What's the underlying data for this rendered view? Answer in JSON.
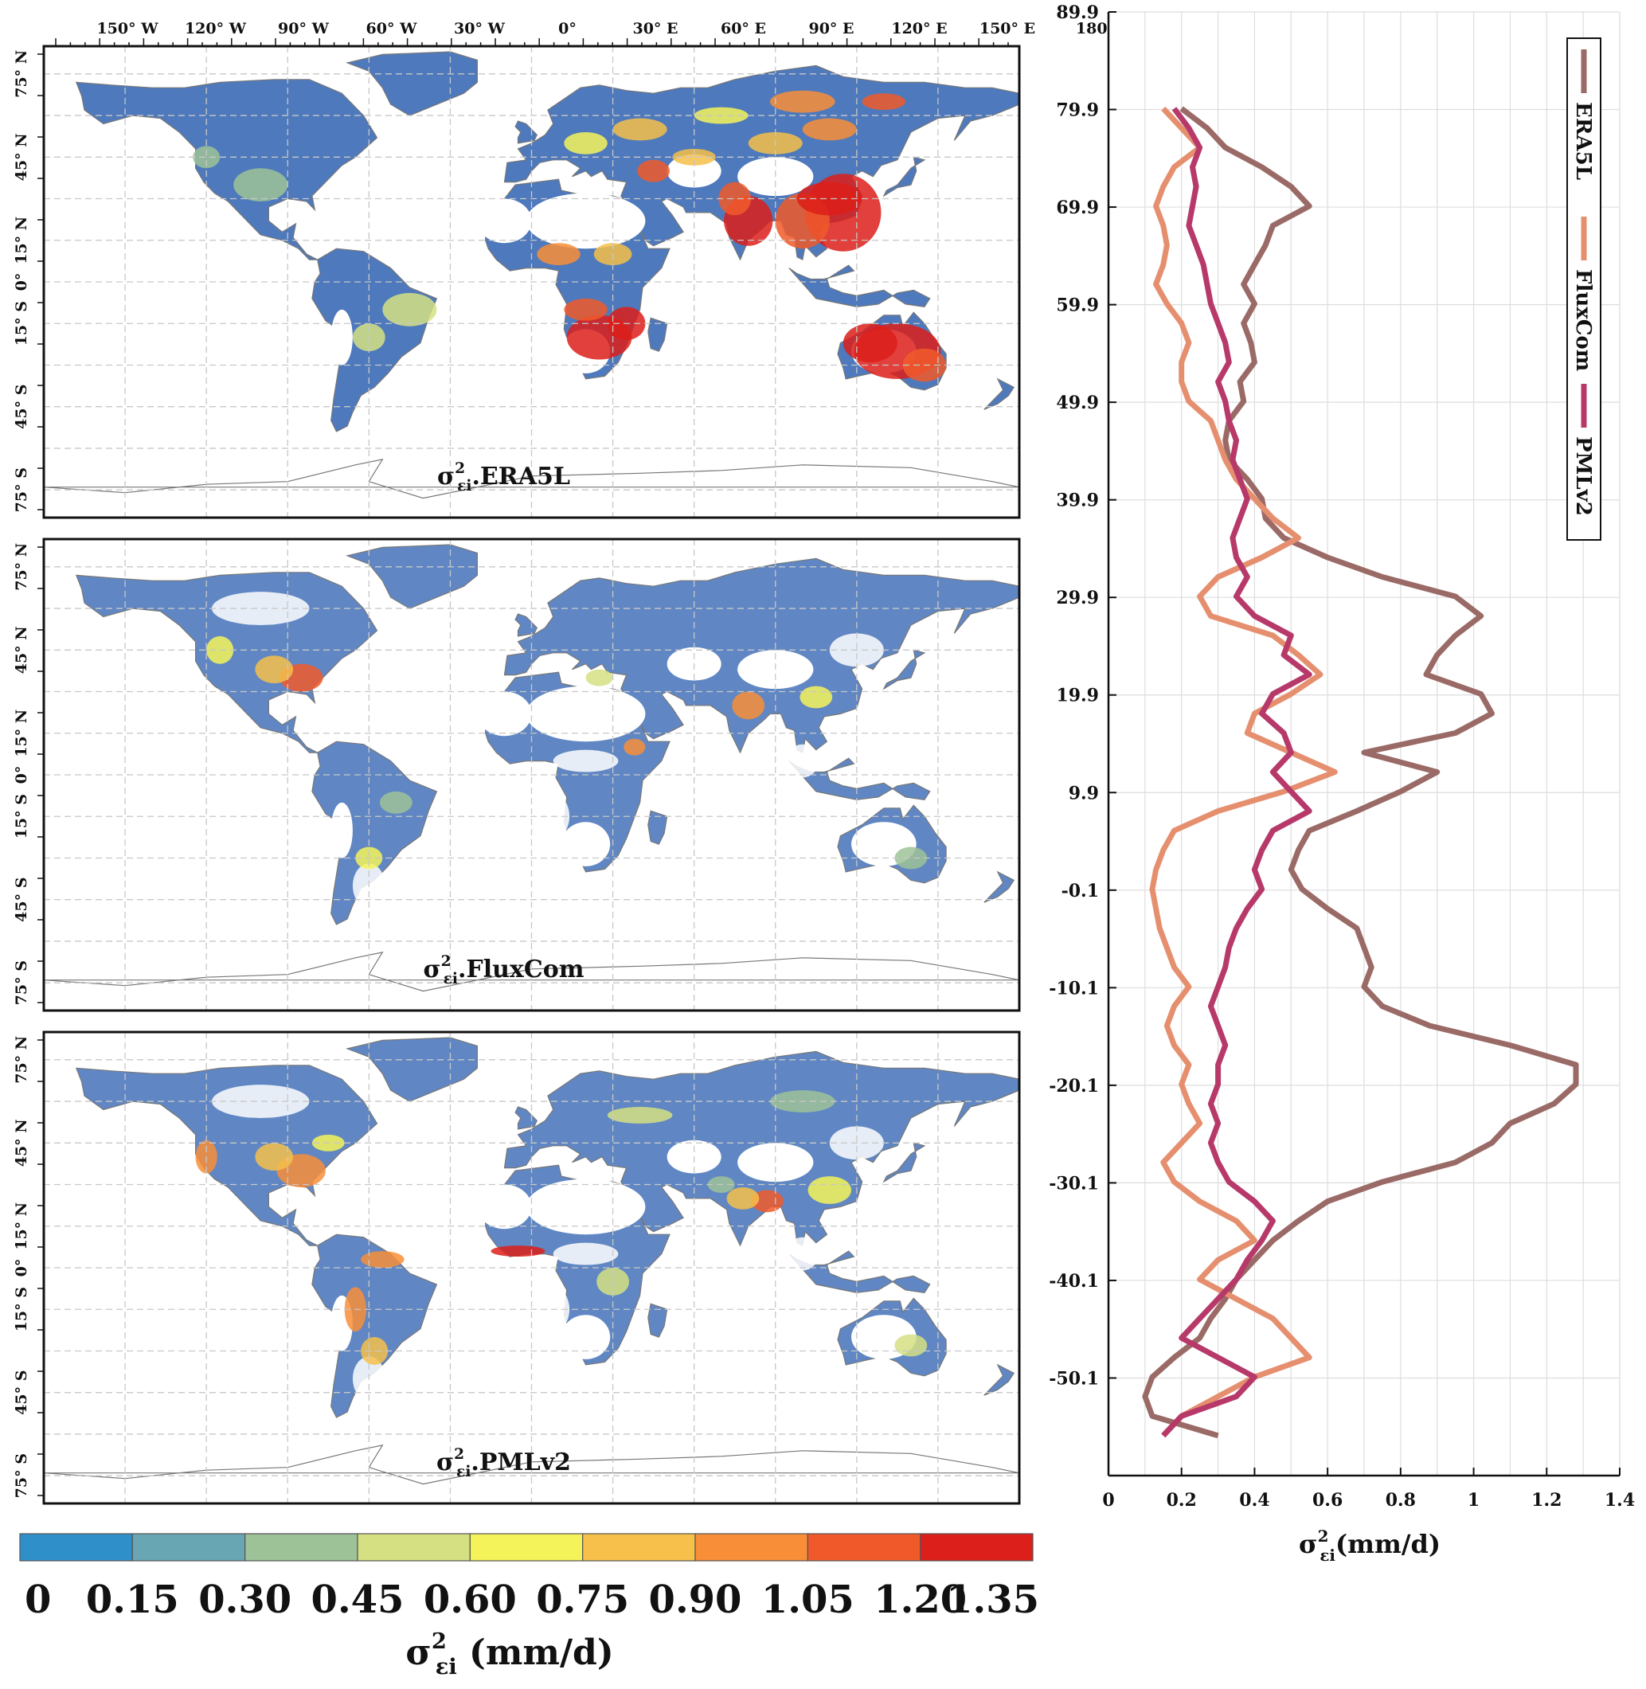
{
  "colors": {
    "land_low": "#4472b8",
    "ocean": "#ffffff",
    "coast": "#777777",
    "grid": "#c8c8c8",
    "ERA5L": "#9a6a66",
    "FluxCom": "#e58f6f",
    "PMLv2": "#b6396a"
  },
  "maps": {
    "top_ticks": [
      "150° W",
      "120° W",
      "90° W",
      "60° W",
      "30° W",
      "0°",
      "30° E",
      "60° E",
      "90° E",
      "120° E",
      "150° E",
      "180°"
    ],
    "lat_ticks": [
      "75° N",
      "45° N",
      "15° N",
      "0°",
      "15° S",
      "45° S",
      "75° S"
    ],
    "panels": [
      {
        "id": "era5l",
        "label_base": "σ",
        "label_sup": "2",
        "label_sub": "εi",
        "label_suffix": ".ERA5L",
        "high_coverage": true
      },
      {
        "id": "fluxcom",
        "label_base": "σ",
        "label_sup": "2",
        "label_sub": "εi",
        "label_suffix": ".FluxCom",
        "high_coverage": false
      },
      {
        "id": "pmlv2",
        "label_base": "σ",
        "label_sup": "2",
        "label_sub": "εi",
        "label_suffix": ".PMLv2",
        "high_coverage": false
      }
    ]
  },
  "colorbar": {
    "ticks": [
      "0",
      "0.15",
      "0.30",
      "0.45",
      "0.60",
      "0.75",
      "0.90",
      "1.05",
      "1.20",
      "1.35"
    ],
    "colors": [
      "#2f8fc9",
      "#69a6b3",
      "#9dc298",
      "#d5e082",
      "#f5f35a",
      "#f6c04a",
      "#f88e38",
      "#f05a2a",
      "#dc1f1a"
    ],
    "title_base": "σ",
    "title_sup": "2",
    "title_sub": "εi",
    "title_suffix": " (mm/d)"
  },
  "chart_data": {
    "type": "line",
    "xlabel_base": "σ",
    "xlabel_sup": "2",
    "xlabel_sub": "εi",
    "xlabel_suffix": "(mm/d)",
    "xlim": [
      0,
      1.4
    ],
    "xticks": [
      "0",
      "0.2",
      "0.4",
      "0.6",
      "0.8",
      "1",
      "1.2",
      "1.4"
    ],
    "ylim": [
      -60.1,
      89.9
    ],
    "yticks": [
      "89.9",
      "79.9",
      "69.9",
      "59.9",
      "49.9",
      "39.9",
      "29.9",
      "19.9",
      "9.9",
      "-0.1",
      "-10.1",
      "-20.1",
      "-30.1",
      "-40.1",
      "-50.1"
    ],
    "legend_position": "top-right",
    "latitude": [
      80,
      78,
      76,
      74,
      72,
      70,
      68,
      66,
      64,
      62,
      60,
      58,
      56,
      54,
      52,
      50,
      48,
      46,
      44,
      42,
      40,
      38,
      36,
      34,
      32,
      30,
      28,
      26,
      24,
      22,
      20,
      18,
      16,
      14,
      12,
      10,
      8,
      6,
      4,
      2,
      0,
      -2,
      -4,
      -6,
      -8,
      -10,
      -12,
      -14,
      -16,
      -18,
      -20,
      -22,
      -24,
      -26,
      -28,
      -30,
      -32,
      -34,
      -36,
      -38,
      -40,
      -42,
      -44,
      -46,
      -48,
      -50,
      -52,
      -54,
      -56
    ],
    "series": [
      {
        "name": "ERA5L",
        "values": [
          0.2,
          0.27,
          0.32,
          0.42,
          0.5,
          0.55,
          0.45,
          0.43,
          0.4,
          0.37,
          0.4,
          0.37,
          0.39,
          0.4,
          0.36,
          0.37,
          0.33,
          0.32,
          0.33,
          0.38,
          0.42,
          0.43,
          0.48,
          0.6,
          0.75,
          0.95,
          1.02,
          0.95,
          0.9,
          0.87,
          1.02,
          1.05,
          0.95,
          0.7,
          0.9,
          0.8,
          0.68,
          0.55,
          0.52,
          0.5,
          0.53,
          0.6,
          0.68,
          0.7,
          0.72,
          0.7,
          0.75,
          0.88,
          1.1,
          1.28,
          1.28,
          1.22,
          1.1,
          1.05,
          0.95,
          0.75,
          0.6,
          0.52,
          0.45,
          0.4,
          0.35,
          0.32,
          0.28,
          0.25,
          0.18,
          0.12,
          0.1,
          0.12,
          0.3
        ]
      },
      {
        "name": "FluxCom",
        "values": [
          0.15,
          0.2,
          0.25,
          0.18,
          0.15,
          0.13,
          0.15,
          0.16,
          0.15,
          0.13,
          0.16,
          0.2,
          0.22,
          0.2,
          0.2,
          0.22,
          0.28,
          0.3,
          0.32,
          0.35,
          0.4,
          0.45,
          0.52,
          0.42,
          0.3,
          0.25,
          0.28,
          0.45,
          0.52,
          0.58,
          0.5,
          0.4,
          0.38,
          0.5,
          0.62,
          0.48,
          0.3,
          0.18,
          0.15,
          0.13,
          0.12,
          0.13,
          0.14,
          0.16,
          0.18,
          0.22,
          0.18,
          0.16,
          0.18,
          0.22,
          0.2,
          0.22,
          0.25,
          0.2,
          0.15,
          0.18,
          0.25,
          0.35,
          0.4,
          0.3,
          0.25,
          0.35,
          0.45,
          0.5,
          0.55,
          0.4,
          0.3,
          0.2,
          0.15
        ]
      },
      {
        "name": "PMLv2",
        "values": [
          0.18,
          0.22,
          0.25,
          0.23,
          0.24,
          0.23,
          0.22,
          0.24,
          0.26,
          0.27,
          0.28,
          0.3,
          0.32,
          0.33,
          0.3,
          0.32,
          0.33,
          0.35,
          0.34,
          0.36,
          0.38,
          0.36,
          0.34,
          0.35,
          0.38,
          0.35,
          0.4,
          0.5,
          0.48,
          0.55,
          0.45,
          0.42,
          0.48,
          0.5,
          0.45,
          0.5,
          0.55,
          0.45,
          0.42,
          0.4,
          0.42,
          0.38,
          0.35,
          0.33,
          0.32,
          0.3,
          0.28,
          0.3,
          0.32,
          0.3,
          0.3,
          0.28,
          0.3,
          0.28,
          0.3,
          0.33,
          0.4,
          0.45,
          0.42,
          0.38,
          0.35,
          0.3,
          0.25,
          0.2,
          0.3,
          0.4,
          0.35,
          0.2,
          0.15
        ]
      }
    ]
  }
}
